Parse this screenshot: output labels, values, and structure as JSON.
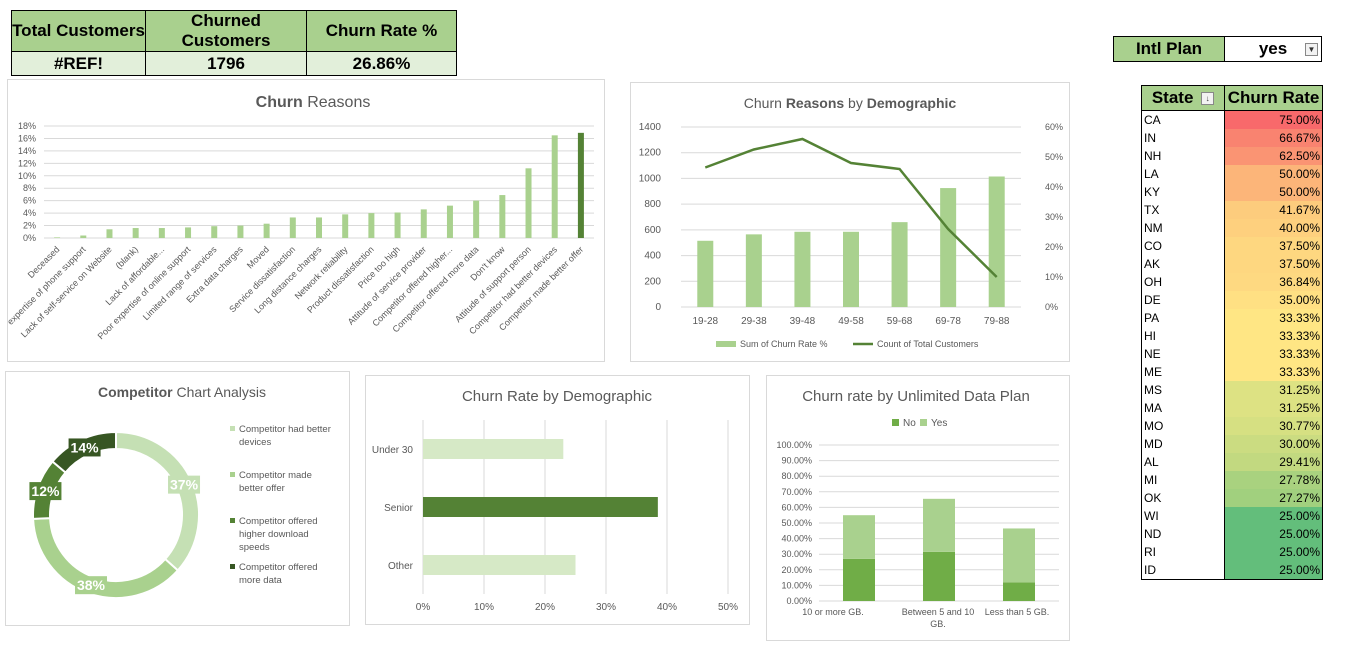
{
  "kpi": {
    "headers": [
      "Total Customers",
      "Churned Customers",
      "Churn Rate %"
    ],
    "values": [
      "#REF!",
      "1796",
      "26.86%"
    ]
  },
  "intl_plan": {
    "label": "Intl Plan",
    "value": "yes"
  },
  "state_table": {
    "headers": [
      "State",
      "Churn Rate"
    ],
    "rows": [
      {
        "state": "CA",
        "rate": "75.00%",
        "color": "#f8696b"
      },
      {
        "state": "IN",
        "rate": "66.67%",
        "color": "#f98370"
      },
      {
        "state": "NH",
        "rate": "62.50%",
        "color": "#fa9473"
      },
      {
        "state": "LA",
        "rate": "50.00%",
        "color": "#fcb579"
      },
      {
        "state": "KY",
        "rate": "50.00%",
        "color": "#fcb579"
      },
      {
        "state": "TX",
        "rate": "41.67%",
        "color": "#fdcc7d"
      },
      {
        "state": "NM",
        "rate": "40.00%",
        "color": "#fed07e"
      },
      {
        "state": "CO",
        "rate": "37.50%",
        "color": "#fed780"
      },
      {
        "state": "AK",
        "rate": "37.50%",
        "color": "#fed780"
      },
      {
        "state": "OH",
        "rate": "36.84%",
        "color": "#fed981"
      },
      {
        "state": "DE",
        "rate": "35.00%",
        "color": "#ffe083"
      },
      {
        "state": "PA",
        "rate": "33.33%",
        "color": "#ffe684"
      },
      {
        "state": "HI",
        "rate": "33.33%",
        "color": "#ffe684"
      },
      {
        "state": "NE",
        "rate": "33.33%",
        "color": "#ffe684"
      },
      {
        "state": "ME",
        "rate": "33.33%",
        "color": "#ffe684"
      },
      {
        "state": "MS",
        "rate": "31.25%",
        "color": "#dde283"
      },
      {
        "state": "MA",
        "rate": "31.25%",
        "color": "#dde283"
      },
      {
        "state": "MO",
        "rate": "30.77%",
        "color": "#d6e082"
      },
      {
        "state": "MD",
        "rate": "30.00%",
        "color": "#cbdc81"
      },
      {
        "state": "AL",
        "rate": "29.41%",
        "color": "#c2d980"
      },
      {
        "state": "MI",
        "rate": "27.78%",
        "color": "#a9d27f"
      },
      {
        "state": "OK",
        "rate": "27.27%",
        "color": "#a1d07e"
      },
      {
        "state": "WI",
        "rate": "25.00%",
        "color": "#63be7b"
      },
      {
        "state": "ND",
        "rate": "25.00%",
        "color": "#63be7b"
      },
      {
        "state": "RI",
        "rate": "25.00%",
        "color": "#63be7b"
      },
      {
        "state": "ID",
        "rate": "25.00%",
        "color": "#63be7b"
      }
    ]
  },
  "colors": {
    "light_green": "#a9d18e",
    "mid_green": "#70ad47",
    "dark_green": "#548235",
    "darkest_green": "#375623",
    "pale_green": "#c5e0b4",
    "grid": "#d9d9d9",
    "axis_text": "#595959"
  },
  "chart_data": [
    {
      "type": "bar",
      "title_bold": "Churn",
      "title_rest": " Reasons",
      "categories": [
        "Deceased",
        "Poor expertise of phone support",
        "Lack of self-service on Website",
        "(blank)",
        "Lack of affordable...",
        "Poor expertise of online support",
        "Limited range of services",
        "Extra data charges",
        "Moved",
        "Service dissatisfaction",
        "Long distance charges",
        "Network reliability",
        "Product dissatisfaction",
        "Price too high",
        "Attitude of service provider",
        "Competitor offered higher...",
        "Competitor offered more data",
        "Don't know",
        "Attitude of support person",
        "Competitor had better devices",
        "Competitor made better offer"
      ],
      "values": [
        0.1,
        0.4,
        1.4,
        1.6,
        1.6,
        1.7,
        1.9,
        2.0,
        2.3,
        3.3,
        3.3,
        3.8,
        4.0,
        4.1,
        4.6,
        5.2,
        6.0,
        6.9,
        11.2,
        16.5,
        16.9
      ],
      "highlight_index": 20,
      "yticks": [
        "0%",
        "2%",
        "4%",
        "6%",
        "8%",
        "10%",
        "12%",
        "14%",
        "16%",
        "18%"
      ],
      "ylim": [
        0,
        18
      ]
    },
    {
      "type": "bar+line",
      "title_parts": [
        "Churn ",
        "Reasons",
        " by ",
        "Demographic"
      ],
      "categories": [
        "19-28",
        "29-38",
        "39-48",
        "49-58",
        "59-68",
        "69-78",
        "79-88"
      ],
      "series": [
        {
          "name": "Sum of Churn Rate %",
          "type": "bar",
          "values": [
            515,
            565,
            585,
            585,
            660,
            925,
            1015
          ]
        },
        {
          "name": "Count of Total Customers",
          "type": "line",
          "values": [
            46.5,
            52.5,
            56,
            48,
            46,
            26,
            10
          ]
        }
      ],
      "yticks_left": [
        "0",
        "200",
        "400",
        "600",
        "800",
        "1000",
        "1200",
        "1400"
      ],
      "ylim_left": [
        0,
        1400
      ],
      "yticks_right": [
        "0%",
        "10%",
        "20%",
        "30%",
        "40%",
        "50%",
        "60%"
      ],
      "ylim_right": [
        0,
        60
      ],
      "legend": "bottom"
    },
    {
      "type": "pie",
      "title_bold": "Competitor",
      "title_rest": " Chart Analysis",
      "slices": [
        {
          "label": "Competitor had better devices",
          "value": 37,
          "text": "37%",
          "color": "#c5e0b4"
        },
        {
          "label": "Competitor made better offer",
          "value": 38,
          "text": "38%",
          "color": "#a9d18e"
        },
        {
          "label": "Competitor offered higher download speeds",
          "value": 12,
          "text": "12%",
          "color": "#548235"
        },
        {
          "label": "Competitor offered more data",
          "value": 14,
          "text": "14%",
          "color": "#375623"
        }
      ],
      "legend": "right"
    },
    {
      "type": "bar",
      "orientation": "horizontal",
      "title": "Churn Rate by Demographic",
      "categories": [
        "Under 30",
        "Senior",
        "Other"
      ],
      "values": [
        23,
        38.5,
        25
      ],
      "bar_colors": [
        "#d6e9c6",
        "#548235",
        "#d6e9c6"
      ],
      "xticks": [
        "0%",
        "10%",
        "20%",
        "30%",
        "40%",
        "50%"
      ],
      "xlim": [
        0,
        50
      ]
    },
    {
      "type": "bar",
      "stacked": true,
      "title": "Churn rate by Unlimited Data Plan",
      "categories": [
        "10 or more GB.",
        "Between 5 and 10 GB.",
        "Less than 5 GB."
      ],
      "series": [
        {
          "name": "No",
          "values": [
            27,
            31.5,
            12
          ],
          "color": "#70ad47"
        },
        {
          "name": "Yes",
          "values": [
            28,
            34,
            34.5
          ],
          "color": "#a9d18e"
        }
      ],
      "yticks": [
        "0.00%",
        "10.00%",
        "20.00%",
        "30.00%",
        "40.00%",
        "50.00%",
        "60.00%",
        "70.00%",
        "80.00%",
        "90.00%",
        "100.00%"
      ],
      "ylim": [
        0,
        100
      ],
      "legend": "top"
    }
  ]
}
